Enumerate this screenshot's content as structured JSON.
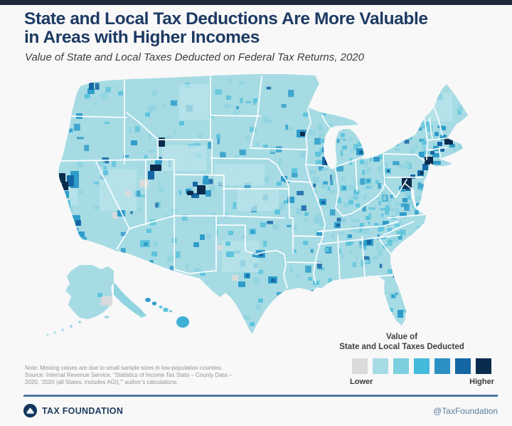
{
  "page": {
    "top_bar_color": "#202a3d",
    "background": "#f8f8f8",
    "title_color": "#1d3a63"
  },
  "header": {
    "title_line1": "State and Local Tax Deductions Are More Valuable",
    "title_line2": "in Areas with Higher Incomes",
    "subtitle": "Value of State and Local Taxes Deducted on Federal Tax Returns, 2020"
  },
  "legend": {
    "title_line1": "Value of",
    "title_line2": "State and Local Taxes Deducted",
    "low_label": "Lower",
    "high_label": "Higher",
    "swatches": [
      "#d9dadb",
      "#a6dbe4",
      "#7bcfde",
      "#44b9da",
      "#2b90c4",
      "#1566a4",
      "#0b2b4e"
    ]
  },
  "notes": {
    "line1": "Note: Missing values are due to small sample sizes in low-population counties.",
    "line2": "Source: Internal Revenue Service, “Statistics of Income Tax Stats – County Data –",
    "line3": "2020, ‘2020 (all States, includes AGI),’” author’s calculations."
  },
  "footer": {
    "brand": "TAX FOUNDATION",
    "handle": "@TaxFoundation",
    "rule_color": "#4a79a3"
  },
  "map": {
    "base_color": "#a6dbe4",
    "border_color": "#ffffff",
    "palette": {
      "light": "#bce5eb",
      "gray": "#d8dadb",
      "t1": "#8fd4e0",
      "med": "#5fc4dc",
      "mid": "#2f9cca",
      "strong": "#1566a4",
      "navy": "#0b2b4e"
    },
    "highlights": [
      [
        140,
        238,
        52,
        58,
        "light"
      ],
      [
        228,
        204,
        62,
        36,
        "light"
      ],
      [
        302,
        230,
        70,
        30,
        "light"
      ],
      [
        312,
        338,
        52,
        44,
        "light"
      ],
      [
        252,
        118,
        42,
        50,
        "light"
      ],
      [
        600,
        130,
        36,
        40,
        "light"
      ],
      [
        334,
        264,
        58,
        32,
        "light"
      ],
      [
        96,
        254,
        13,
        34,
        "light"
      ],
      [
        196,
        252,
        13,
        11,
        "gray"
      ],
      [
        158,
        298,
        9,
        9,
        "gray"
      ],
      [
        176,
        268,
        8,
        8,
        "gray"
      ],
      [
        326,
        386,
        9,
        8,
        "gray"
      ],
      [
        306,
        344,
        7,
        7,
        "gray"
      ],
      [
        119,
        132,
        8,
        6,
        "med"
      ],
      [
        166,
        128,
        7,
        6,
        "med"
      ],
      [
        204,
        158,
        7,
        6,
        "med"
      ],
      [
        252,
        170,
        7,
        6,
        "med"
      ],
      [
        318,
        134,
        7,
        6,
        "med"
      ],
      [
        356,
        138,
        6,
        6,
        "med"
      ],
      [
        304,
        188,
        6,
        6,
        "med"
      ],
      [
        370,
        203,
        7,
        6,
        "med"
      ],
      [
        410,
        236,
        8,
        7,
        "med"
      ],
      [
        389,
        255,
        7,
        6,
        "med"
      ],
      [
        386,
        294,
        8,
        7,
        "med"
      ],
      [
        399,
        281,
        6,
        5,
        "med"
      ],
      [
        366,
        312,
        8,
        7,
        "med"
      ],
      [
        350,
        321,
        10,
        8,
        "med"
      ],
      [
        318,
        353,
        11,
        8,
        "med"
      ],
      [
        281,
        381,
        8,
        6,
        "med"
      ],
      [
        363,
        419,
        7,
        6,
        "med"
      ],
      [
        351,
        452,
        7,
        6,
        "med"
      ],
      [
        321,
        324,
        7,
        6,
        "med"
      ],
      [
        317,
        339,
        7,
        6,
        "med"
      ],
      [
        206,
        321,
        7,
        6,
        "med"
      ],
      [
        213,
        353,
        8,
        7,
        "med"
      ],
      [
        197,
        337,
        14,
        10,
        "med"
      ],
      [
        145,
        239,
        7,
        7,
        "med"
      ],
      [
        91,
        281,
        8,
        13,
        "med"
      ],
      [
        426,
        158,
        7,
        6,
        "med"
      ],
      [
        450,
        195,
        6,
        6,
        "med"
      ],
      [
        443,
        213,
        8,
        7,
        "med"
      ],
      [
        447,
        225,
        6,
        5,
        "med"
      ],
      [
        479,
        187,
        6,
        5,
        "med"
      ],
      [
        481,
        204,
        7,
        6,
        "med"
      ],
      [
        506,
        225,
        6,
        5,
        "med"
      ],
      [
        479,
        260,
        9,
        8,
        "med"
      ],
      [
        497,
        266,
        8,
        7,
        "med"
      ],
      [
        513,
        250,
        9,
        8,
        "med"
      ],
      [
        541,
        236,
        9,
        8,
        "med"
      ],
      [
        428,
        298,
        6,
        5,
        "med"
      ],
      [
        490,
        281,
        7,
        6,
        "med"
      ],
      [
        500,
        286,
        6,
        5,
        "med"
      ],
      [
        514,
        303,
        7,
        6,
        "med"
      ],
      [
        506,
        313,
        6,
        5,
        "med"
      ],
      [
        486,
        338,
        8,
        7,
        "med"
      ],
      [
        550,
        303,
        7,
        5,
        "med"
      ],
      [
        526,
        313,
        6,
        5,
        "med"
      ],
      [
        536,
        330,
        7,
        6,
        "med"
      ],
      [
        545,
        320,
        6,
        5,
        "med"
      ],
      [
        538,
        343,
        6,
        5,
        "med"
      ],
      [
        545,
        378,
        7,
        6,
        "med"
      ],
      [
        549,
        412,
        8,
        7,
        "med"
      ],
      [
        547,
        432,
        6,
        6,
        "med"
      ],
      [
        535,
        420,
        6,
        6,
        "med"
      ],
      [
        440,
        394,
        9,
        6,
        "med"
      ],
      [
        433,
        389,
        6,
        5,
        "med"
      ],
      [
        456,
        348,
        6,
        5,
        "med"
      ],
      [
        426,
        338,
        7,
        6,
        "med"
      ],
      [
        411,
        350,
        6,
        5,
        "med"
      ],
      [
        593,
        197,
        7,
        6,
        "med"
      ],
      [
        574,
        191,
        6,
        5,
        "med"
      ],
      [
        564,
        193,
        6,
        5,
        "med"
      ],
      [
        553,
        199,
        7,
        6,
        "med"
      ],
      [
        599,
        171,
        6,
        6,
        "med"
      ],
      [
        123,
        124,
        10,
        8,
        "mid"
      ],
      [
        107,
        159,
        9,
        8,
        "mid"
      ],
      [
        184,
        197,
        9,
        7,
        "mid"
      ],
      [
        99,
        240,
        12,
        24,
        "mid"
      ],
      [
        89,
        268,
        8,
        10,
        "mid"
      ],
      [
        99,
        302,
        14,
        12,
        "mid"
      ],
      [
        110,
        325,
        9,
        8,
        "mid"
      ],
      [
        165,
        295,
        11,
        9,
        "mid"
      ],
      [
        218,
        224,
        9,
        7,
        "mid"
      ],
      [
        281,
        329,
        7,
        8,
        "mid"
      ],
      [
        272,
        340,
        8,
        7,
        "mid"
      ],
      [
        202,
        340,
        6,
        5,
        "mid"
      ],
      [
        285,
        251,
        9,
        8,
        "mid"
      ],
      [
        261,
        265,
        8,
        7,
        "mid"
      ],
      [
        289,
        267,
        8,
        9,
        "mid"
      ],
      [
        286,
        245,
        7,
        6,
        "mid"
      ],
      [
        395,
        247,
        9,
        8,
        "mid"
      ],
      [
        404,
        276,
        10,
        9,
        "mid"
      ],
      [
        449,
        279,
        10,
        9,
        "mid"
      ],
      [
        417,
        182,
        14,
        11,
        "mid"
      ],
      [
        453,
        206,
        8,
        8,
        "mid"
      ],
      [
        360,
        351,
        13,
        11,
        "mid"
      ],
      [
        355,
        355,
        6,
        6,
        "mid"
      ],
      [
        343,
        383,
        9,
        8,
        "mid"
      ],
      [
        335,
        395,
        10,
        8,
        "mid"
      ],
      [
        377,
        388,
        13,
        10,
        "mid"
      ],
      [
        525,
        220,
        9,
        7,
        "mid"
      ],
      [
        501,
        208,
        11,
        10,
        "mid"
      ],
      [
        482,
        262,
        4,
        4,
        "mid"
      ],
      [
        516,
        252,
        4,
        4,
        "mid"
      ],
      [
        470,
        312,
        9,
        8,
        "mid"
      ],
      [
        445,
        326,
        8,
        7,
        "mid"
      ],
      [
        512,
        334,
        13,
        11,
        "mid"
      ],
      [
        538,
        310,
        9,
        7,
        "mid"
      ],
      [
        562,
        298,
        10,
        7,
        "mid"
      ],
      [
        566,
        278,
        7,
        6,
        "mid"
      ],
      [
        561,
        261,
        9,
        8,
        "mid"
      ],
      [
        608,
        215,
        10,
        6,
        "mid"
      ],
      [
        602,
        226,
        18,
        5,
        "mid"
      ],
      [
        589,
        213,
        8,
        8,
        "mid"
      ],
      [
        609,
        205,
        8,
        7,
        "mid"
      ],
      [
        619,
        189,
        9,
        8,
        "mid"
      ],
      [
        632,
        202,
        8,
        5,
        "mid"
      ],
      [
        620,
        177,
        7,
        6,
        "mid"
      ],
      [
        611,
        185,
        6,
        6,
        "mid"
      ],
      [
        534,
        410,
        8,
        7,
        "mid"
      ],
      [
        559,
        435,
        8,
        11,
        "mid"
      ],
      [
        551,
        414,
        4,
        4,
        "mid"
      ],
      [
        489,
        329,
        6,
        5,
        "mid"
      ],
      [
        585,
        285,
        7,
        5,
        "mid"
      ],
      [
        353,
        323,
        5,
        5,
        "mid"
      ],
      [
        125,
        116,
        7,
        10,
        "strong"
      ],
      [
        94,
        246,
        10,
        16,
        "strong"
      ],
      [
        106,
        309,
        8,
        8,
        "strong"
      ],
      [
        208,
        240,
        9,
        12,
        "strong"
      ],
      [
        271,
        255,
        7,
        7,
        "strong"
      ],
      [
        269,
        271,
        11,
        7,
        "strong"
      ],
      [
        364,
        354,
        6,
        6,
        "strong"
      ],
      [
        346,
        385,
        4,
        4,
        "strong"
      ],
      [
        381,
        391,
        6,
        5,
        "strong"
      ],
      [
        453,
        220,
        11,
        12,
        "strong"
      ],
      [
        505,
        211,
        5,
        5,
        "strong"
      ],
      [
        452,
        282,
        5,
        4,
        "strong"
      ],
      [
        473,
        314,
        5,
        4,
        "strong"
      ],
      [
        516,
        337,
        6,
        6,
        "strong"
      ],
      [
        570,
        258,
        9,
        10,
        "strong"
      ],
      [
        577,
        245,
        7,
        6,
        "strong"
      ],
      [
        587,
        239,
        9,
        8,
        "strong"
      ],
      [
        594,
        230,
        8,
        9,
        "strong"
      ],
      [
        605,
        212,
        6,
        5,
        "strong"
      ],
      [
        619,
        207,
        6,
        6,
        "strong"
      ],
      [
        615,
        199,
        7,
        6,
        "strong"
      ],
      [
        544,
        238,
        4,
        4,
        "strong"
      ],
      [
        83,
        243,
        9,
        14,
        "navy"
      ],
      [
        87,
        255,
        9,
        12,
        "navy"
      ],
      [
        211,
        231,
        16,
        9,
        "navy"
      ],
      [
        223,
        193,
        9,
        13,
        "navy"
      ],
      [
        277,
        260,
        12,
        13,
        "navy"
      ],
      [
        263,
        268,
        9,
        6,
        "navy"
      ],
      [
        422,
        185,
        7,
        6,
        "navy"
      ],
      [
        457,
        224,
        5,
        6,
        "navy"
      ],
      [
        565,
        249,
        14,
        16,
        "navy"
      ],
      [
        591,
        241,
        4,
        4,
        "navy"
      ],
      [
        597,
        220,
        12,
        11,
        "navy"
      ],
      [
        625,
        193,
        12,
        10,
        "navy"
      ]
    ],
    "texture": {
      "seed": 1337,
      "count_general": 850,
      "count_east": 260
    }
  }
}
